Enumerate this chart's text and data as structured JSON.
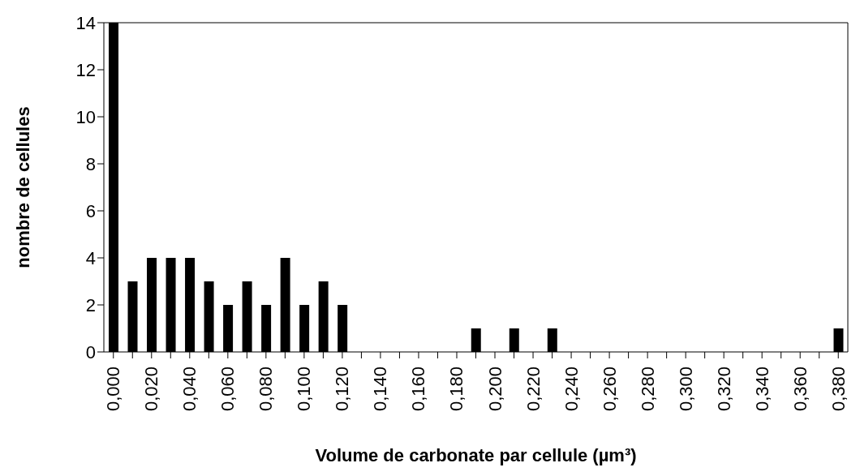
{
  "chart_data": {
    "type": "bar",
    "xlabel": "Volume de carbonate par cellule (µm³)",
    "ylabel": "nombre de cellules",
    "categories": [
      "0,000",
      null,
      "0,020",
      null,
      "0,040",
      null,
      "0,060",
      null,
      "0,080",
      null,
      "0,100",
      null,
      "0,120",
      null,
      "0,140",
      null,
      "0,160",
      null,
      "0,180",
      null,
      "0,200",
      null,
      "0,220",
      null,
      "0,240",
      null,
      "0,260",
      null,
      "0,280",
      null,
      "0,300",
      null,
      "0,320",
      null,
      "0,340",
      null,
      "0,360",
      null,
      "0,380"
    ],
    "values": [
      14,
      3,
      4,
      4,
      4,
      3,
      2,
      3,
      2,
      4,
      2,
      3,
      2,
      0,
      0,
      0,
      0,
      0,
      0,
      1,
      0,
      1,
      0,
      1,
      0,
      0,
      0,
      0,
      0,
      0,
      0,
      0,
      0,
      0,
      0,
      0,
      0,
      0,
      1
    ],
    "color": "#000000",
    "ylim": [
      0,
      14
    ],
    "yticks": [
      0,
      2,
      4,
      6,
      8,
      10,
      12,
      14
    ],
    "grid": false
  }
}
